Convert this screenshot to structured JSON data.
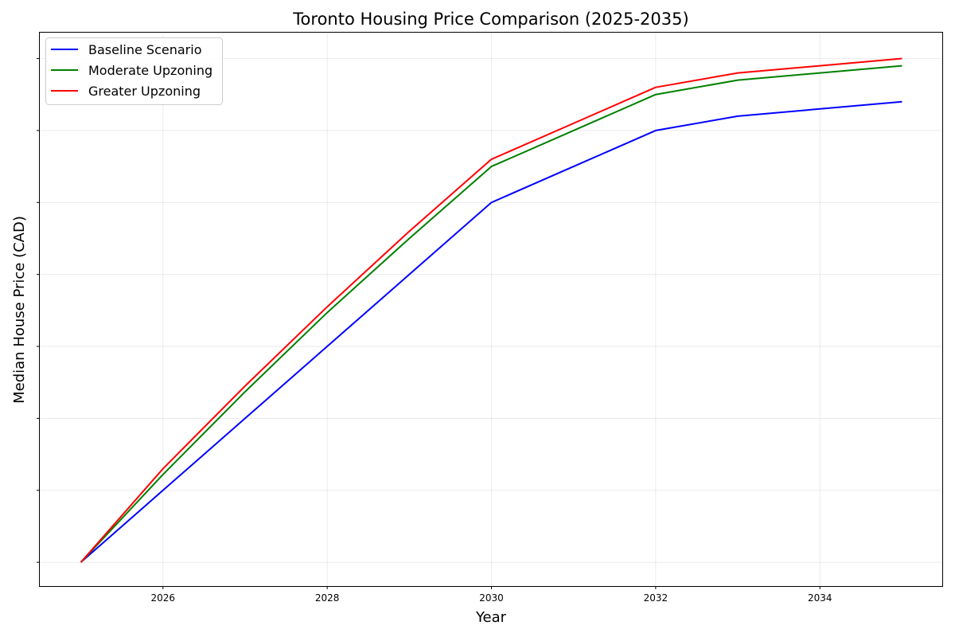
{
  "chart_data": {
    "type": "line",
    "title": "Toronto Housing Price Comparison (2025-2035)",
    "xlabel": "Year",
    "ylabel": "Median House Price (CAD)",
    "x": [
      2025,
      2026,
      2027,
      2028,
      2029,
      2030,
      2031,
      2032,
      2033,
      2034,
      2035
    ],
    "xlim": [
      2024.5,
      2035.5
    ],
    "ylim": [
      -0.33,
      7.36
    ],
    "x_ticks": [
      2026,
      2028,
      2030,
      2032,
      2034
    ],
    "y_ticks": [
      0,
      1,
      2,
      3,
      4,
      5,
      6,
      7
    ],
    "y_tick_labels_visible": false,
    "grid": true,
    "legend_position": "top-left",
    "series": [
      {
        "name": "Baseline Scenario",
        "color": "#0000ff",
        "values": [
          0,
          1,
          2,
          3,
          4,
          5,
          5.5,
          6,
          6.2,
          6.3,
          6.4
        ]
      },
      {
        "name": "Moderate Upzoning",
        "color": "#008000",
        "values": [
          0,
          1.22,
          2.37,
          3.47,
          4.5,
          5.5,
          6.0,
          6.5,
          6.7,
          6.8,
          6.9
        ]
      },
      {
        "name": "Greater Upzoning",
        "color": "#ff0000",
        "values": [
          0,
          1.3,
          2.45,
          3.55,
          4.6,
          5.6,
          6.1,
          6.6,
          6.8,
          6.9,
          7.0
        ]
      }
    ]
  }
}
